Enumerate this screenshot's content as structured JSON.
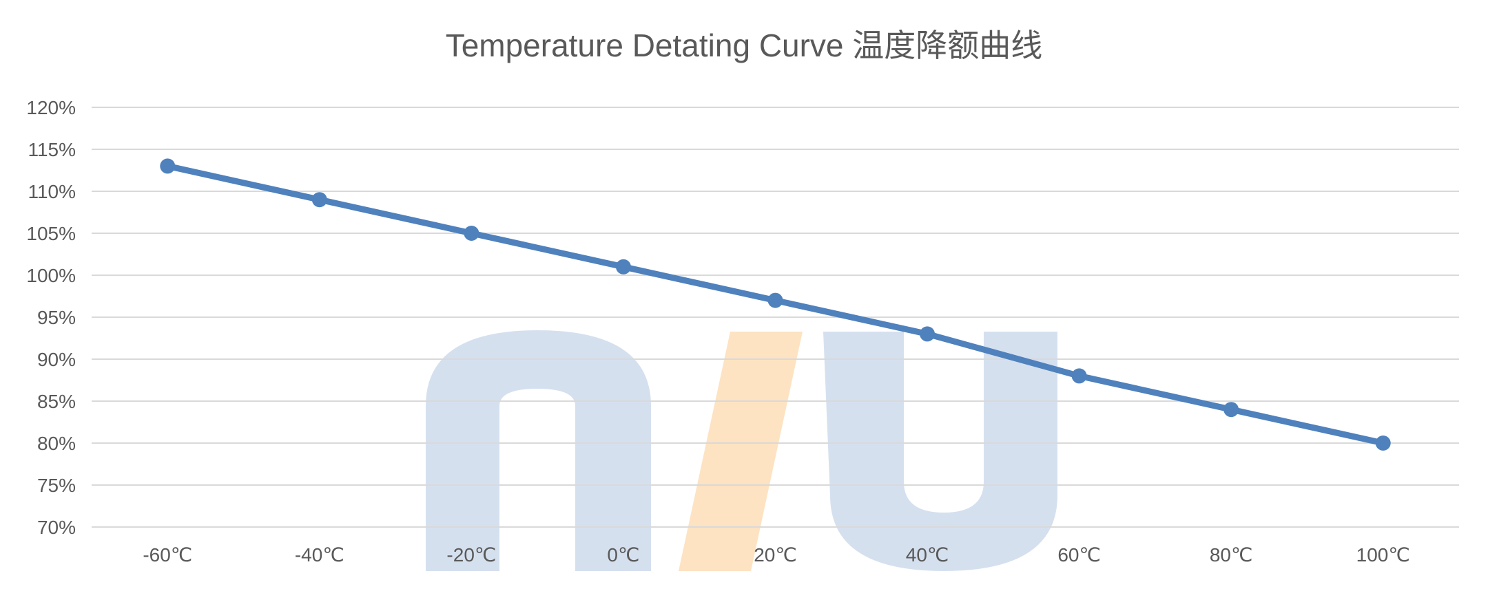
{
  "chart_data": {
    "type": "line",
    "title": "Temperature Detating Curve 温度降额曲线",
    "xlabel": "",
    "ylabel": "",
    "categories": [
      "-60℃",
      "-40℃",
      "-20℃",
      "0℃",
      "20℃",
      "40℃",
      "60℃",
      "80℃",
      "100℃"
    ],
    "series": [
      {
        "values": [
          113,
          109,
          105,
          101,
          97,
          93,
          88,
          84,
          80
        ],
        "color": "#4f81bd"
      }
    ],
    "ylim": [
      70,
      120
    ],
    "ytick_step": 5,
    "ytick_format": "{v}%",
    "yticks": [
      "70%",
      "75%",
      "80%",
      "85%",
      "90%",
      "95%",
      "100%",
      "105%",
      "110%",
      "115%",
      "120%"
    ],
    "grid": true,
    "legend": "none",
    "watermark": {
      "text": "niu",
      "colors": [
        "#d5e0ef",
        "#fde3c2"
      ]
    }
  }
}
